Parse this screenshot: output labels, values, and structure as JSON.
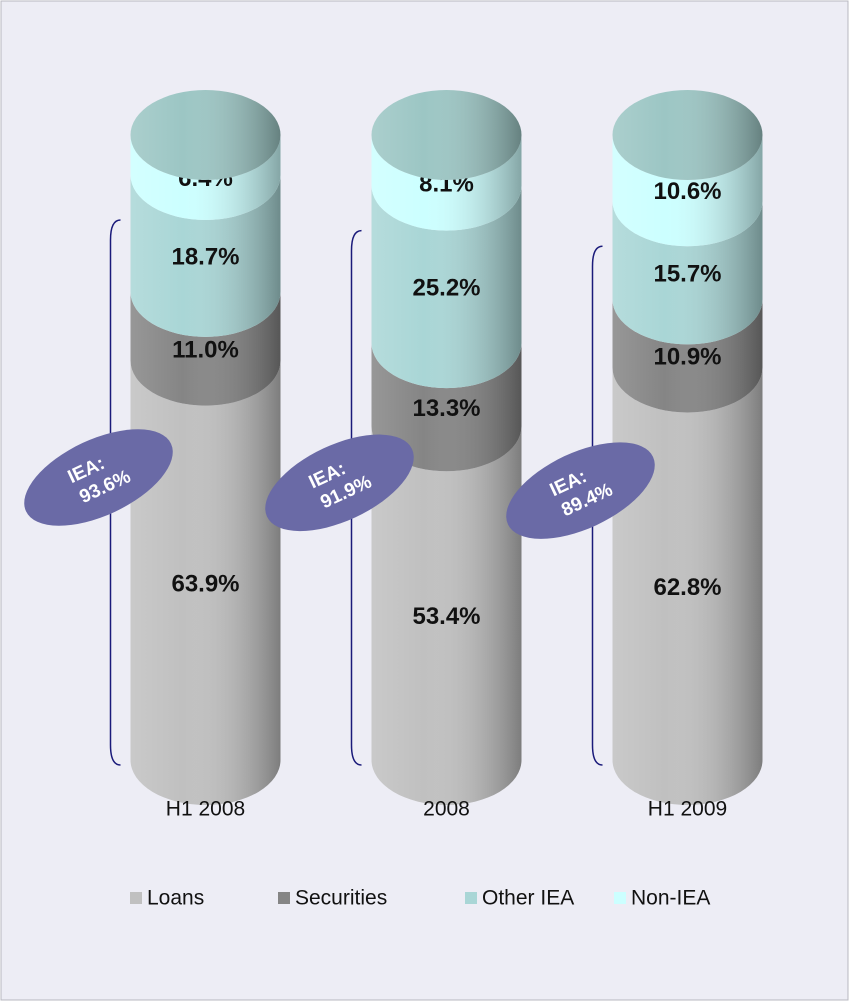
{
  "chart_data": {
    "type": "bar",
    "stacked": true,
    "categories": [
      "H1 2008",
      "2008",
      "H1 2009"
    ],
    "ylim": [
      0,
      100
    ],
    "series": [
      {
        "name": "Loans",
        "color": "#c0c0c0",
        "values": [
          63.9,
          53.4,
          62.8
        ],
        "value_labels": [
          "63.9%",
          "53.4%",
          "62.8%"
        ]
      },
      {
        "name": "Securities",
        "color": "#858585",
        "values": [
          11.0,
          13.3,
          10.9
        ],
        "value_labels": [
          "11.0%",
          "13.3%",
          "10.9%"
        ]
      },
      {
        "name": "Other IEA",
        "color": "#a9d6d6",
        "values": [
          18.7,
          25.2,
          15.7
        ],
        "value_labels": [
          "18.7%",
          "25.2%",
          "15.7%"
        ]
      },
      {
        "name": "Non-IEA",
        "color": "#ccffff",
        "values": [
          6.4,
          8.1,
          10.6
        ],
        "value_labels": [
          "6.4%",
          "8.1%",
          "10.6%"
        ]
      }
    ],
    "cap_color": "#9cc6c4",
    "annotations": [
      {
        "text": "IEA:",
        "value": 93.6,
        "label": "93.6%"
      },
      {
        "text": "IEA:",
        "value": 91.9,
        "label": "91.9%"
      },
      {
        "text": "IEA:",
        "value": 89.4,
        "label": "89.4%"
      }
    ],
    "annotation_color": "#6a6aa6",
    "legend": "bottom"
  }
}
